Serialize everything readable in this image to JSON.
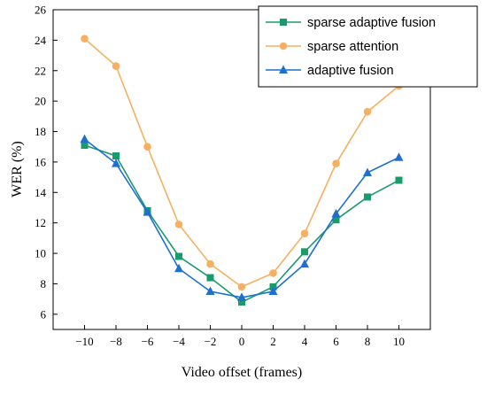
{
  "chart_data": {
    "type": "line",
    "x": [
      -10,
      -8,
      -6,
      -4,
      -2,
      0,
      2,
      4,
      6,
      8,
      10
    ],
    "xticks": [
      "-10",
      "-8",
      "-6",
      "-4",
      "-2",
      "0",
      "2",
      "4",
      "6",
      "8",
      "10"
    ],
    "yticks": [
      "6",
      "8",
      "10",
      "12",
      "14",
      "16",
      "18",
      "20",
      "22",
      "24",
      "26"
    ],
    "xlabel": "Video offset (frames)",
    "ylabel": "WER (%)",
    "xlim": [
      -12,
      12
    ],
    "ylim": [
      5,
      26
    ],
    "grid": false,
    "legend_position": "top-right",
    "series": [
      {
        "name": "sparse adaptive fusion",
        "color": "#1a9b6b",
        "marker": "square",
        "values": [
          17.1,
          16.4,
          12.8,
          9.8,
          8.4,
          6.8,
          7.8,
          10.1,
          12.2,
          13.7,
          14.8
        ]
      },
      {
        "name": "sparse attention",
        "color": "#f5b062",
        "marker": "circle",
        "values": [
          24.1,
          22.3,
          17.0,
          11.9,
          9.3,
          7.8,
          8.7,
          11.3,
          15.9,
          19.3,
          21.0
        ]
      },
      {
        "name": "adaptive fusion",
        "color": "#1f6fd0",
        "marker": "triangle",
        "values": [
          17.5,
          15.9,
          12.7,
          9.0,
          7.5,
          7.1,
          7.5,
          9.3,
          12.6,
          15.3,
          16.3
        ]
      }
    ]
  }
}
